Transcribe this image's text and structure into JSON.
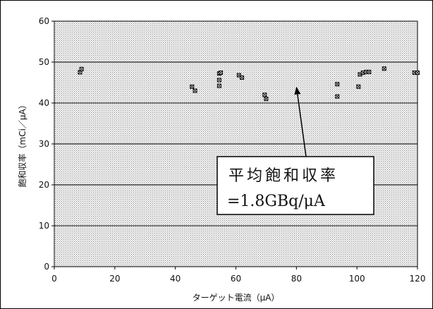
{
  "chart_data": {
    "type": "scatter",
    "xlabel": "ターゲット電流（μA）",
    "ylabel": "飽和収率（mCi／μA）",
    "xlim": [
      0,
      120
    ],
    "ylim": [
      0,
      60
    ],
    "x_ticks": [
      "0",
      "20",
      "40",
      "60",
      "80",
      "100",
      "120"
    ],
    "y_ticks": [
      "0",
      "10",
      "20",
      "30",
      "40",
      "50",
      "60"
    ],
    "grid": "horizontal",
    "series": [
      {
        "points": [
          [
            8.5,
            47.5
          ],
          [
            9,
            48.3
          ],
          [
            45.5,
            44
          ],
          [
            46.5,
            43
          ],
          [
            54.5,
            47.2
          ],
          [
            55,
            47.4
          ],
          [
            54.5,
            45.6
          ],
          [
            54.5,
            44.2
          ],
          [
            61,
            46.8
          ],
          [
            62,
            46.2
          ],
          [
            69.5,
            42
          ],
          [
            70,
            41
          ],
          [
            93.5,
            44.6
          ],
          [
            93.5,
            41.6
          ],
          [
            100.5,
            44
          ],
          [
            101,
            47
          ],
          [
            102,
            47.4
          ],
          [
            103,
            47.6
          ],
          [
            104,
            47.6
          ],
          [
            109,
            48.4
          ],
          [
            119,
            47.4
          ],
          [
            120,
            47.4
          ]
        ]
      }
    ],
    "annotation": {
      "line1": "平均飽和収率",
      "line2": "=1.8GBq/μA",
      "arrow_target": [
        80,
        44
      ]
    }
  }
}
